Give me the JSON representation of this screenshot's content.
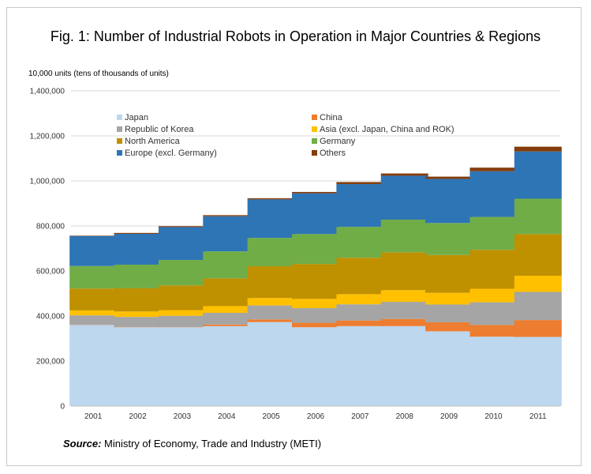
{
  "chart_data": {
    "type": "bar",
    "stacked": true,
    "title": "Fig. 1: Number of Industrial Robots in Operation in Major Countries & Regions",
    "ylabel": "10,000 units (tens of thousands of units)",
    "xlabel": "",
    "ylim": [
      0,
      1400000
    ],
    "yticks": [
      0,
      200000,
      400000,
      600000,
      800000,
      1000000,
      1200000,
      1400000
    ],
    "ytick_labels": [
      "0",
      "200,000",
      "400,000",
      "600,000",
      "800,000",
      "1,000,000",
      "1,200,000",
      "1,400,000"
    ],
    "grid": true,
    "legend_position": "top-left",
    "categories": [
      "2001",
      "2002",
      "2003",
      "2004",
      "2005",
      "2006",
      "2007",
      "2008",
      "2009",
      "2010",
      "2011"
    ],
    "series": [
      {
        "name": "Japan",
        "color": "#bdd7ee",
        "values": [
          360000,
          350000,
          350000,
          355000,
          373000,
          350000,
          355000,
          355000,
          332000,
          308000,
          307000
        ]
      },
      {
        "name": "China",
        "color": "#ed7d31",
        "values": [
          1000,
          1000,
          1000,
          7000,
          12000,
          20000,
          25000,
          32000,
          40000,
          52000,
          75000
        ]
      },
      {
        "name": "Republic of Korea",
        "color": "#a5a5a5",
        "values": [
          42000,
          45000,
          50000,
          52000,
          62000,
          65000,
          72000,
          76000,
          79000,
          101000,
          125000
        ]
      },
      {
        "name": "Asia (excl. Japan, China and ROK)",
        "color": "#ffc000",
        "values": [
          22000,
          24000,
          25000,
          30000,
          33000,
          41000,
          45000,
          52000,
          52000,
          60000,
          72000
        ]
      },
      {
        "name": "North America",
        "color": "#bf9000",
        "values": [
          97000,
          103000,
          110000,
          123000,
          141000,
          155000,
          162000,
          168000,
          168000,
          173000,
          185000
        ]
      },
      {
        "name": "Germany",
        "color": "#70ad47",
        "values": [
          100000,
          105000,
          113000,
          120000,
          126000,
          133000,
          137000,
          145000,
          142000,
          146000,
          157000
        ]
      },
      {
        "name": "Europe (excl. Germany)",
        "color": "#2e75b6",
        "values": [
          133000,
          137000,
          146000,
          156000,
          171000,
          181000,
          190000,
          195000,
          196000,
          203000,
          210000
        ]
      },
      {
        "name": "Others",
        "color": "#843c0c",
        "values": [
          2000,
          4000,
          4000,
          5000,
          5000,
          6000,
          9000,
          10000,
          10000,
          16000,
          21000
        ]
      }
    ]
  },
  "source": {
    "label": "Source:",
    "text": " Ministry of Economy, Trade and Industry (METI)"
  }
}
